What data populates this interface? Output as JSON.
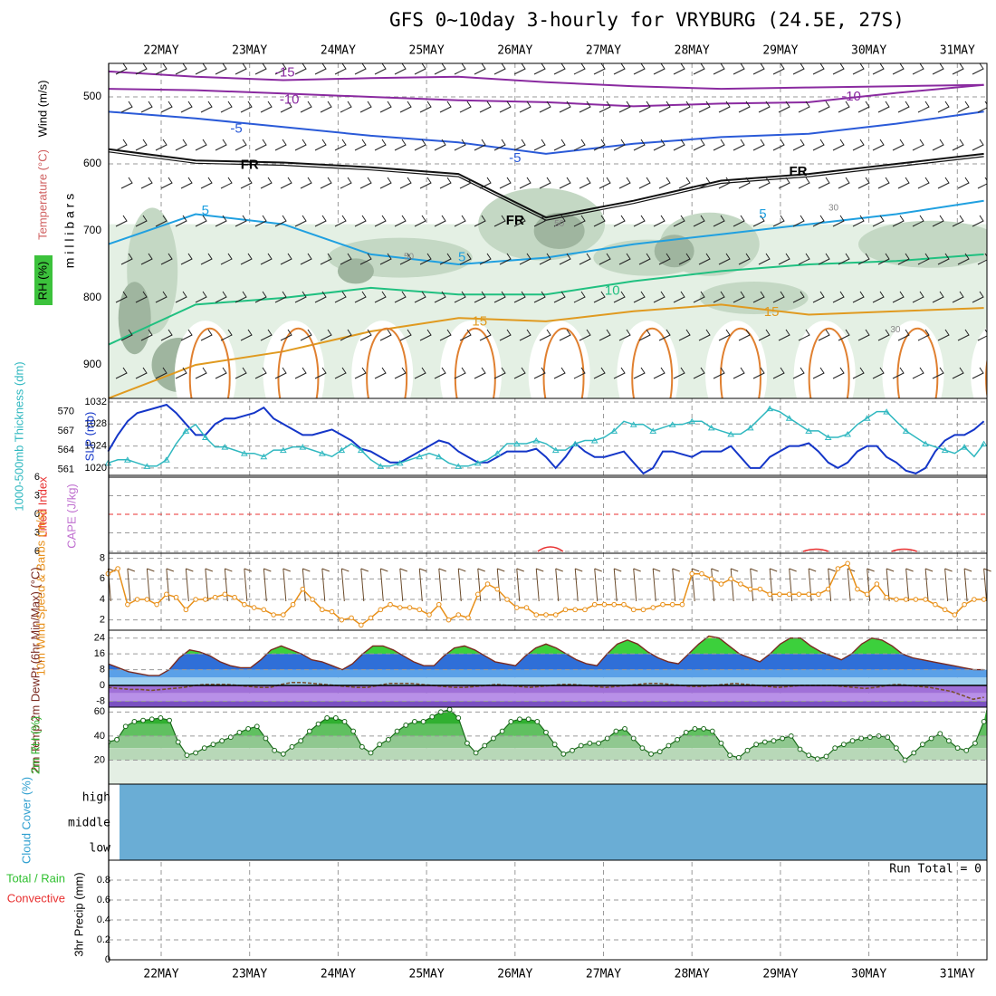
{
  "title": "GFS 0~10day 3-hourly for VRYBURG (24.5E, 27S)",
  "dates": [
    "22MAY",
    "23MAY",
    "24MAY",
    "25MAY",
    "26MAY",
    "27MAY",
    "28MAY",
    "29MAY",
    "30MAY",
    "31MAY"
  ],
  "colors": {
    "grid": "#9a9a9a",
    "slp": "#1436c8",
    "thickness": "#30b8c0",
    "wind10m": "#e8901a",
    "tmax_fill_hi": "#f0e860",
    "tmax_fill_mid": "#40c040",
    "rh_fill": "#58c058",
    "cloud": "#6aadd5",
    "lifted_zero": "#e83030"
  },
  "chart_data": [
    {
      "type": "line",
      "panel": "upper_air",
      "ylabel": "m i l l i b a r s",
      "side_labels": [
        "RH (%)",
        "Temperature (°C)",
        "Wind (m/s)"
      ],
      "y_ticks": [
        500,
        600,
        700,
        800,
        900
      ],
      "ylim": [
        450,
        950
      ],
      "isotherm_labels": [
        {
          "text": "-15",
          "day": 1.4,
          "p": 464
        },
        {
          "text": "-10",
          "day": 1.45,
          "p": 505
        },
        {
          "text": "-10",
          "day": 7.8,
          "p": 500
        },
        {
          "text": "-5",
          "day": 0.85,
          "p": 548
        },
        {
          "text": "-5",
          "day": 4.0,
          "p": 592
        },
        {
          "text": "FR",
          "day": 1.0,
          "p": 602
        },
        {
          "text": "FR",
          "day": 4.0,
          "p": 685
        },
        {
          "text": "FR",
          "day": 7.2,
          "p": 612
        },
        {
          "text": "5",
          "day": 0.5,
          "p": 670
        },
        {
          "text": "5",
          "day": 3.4,
          "p": 740
        },
        {
          "text": "5",
          "day": 6.8,
          "p": 676
        },
        {
          "text": "10",
          "day": 5.1,
          "p": 790
        },
        {
          "text": "15",
          "day": 3.6,
          "p": 836
        },
        {
          "text": "15",
          "day": 6.9,
          "p": 822
        },
        {
          "text": "30",
          "day": 7.6,
          "p": 666
        },
        {
          "text": "30",
          "day": 8.3,
          "p": 848
        },
        {
          "text": "50",
          "day": 2.8,
          "p": 739
        },
        {
          "text": "50",
          "day": 4.5,
          "p": 690
        }
      ]
    },
    {
      "type": "line",
      "panel": "slp_thickness",
      "ylabel_left": "1000-500mb Thickness (dm)",
      "ylabel_right": "SLP (mb)",
      "thickness_ticks": [
        561,
        564,
        567,
        570
      ],
      "slp_ticks": [
        1020,
        1024,
        1028,
        1032
      ],
      "series": [
        {
          "name": "SLP (mb)",
          "values": [
            1023,
            1026,
            1028.5,
            1030,
            1030.5,
            1031,
            1031.5,
            1030,
            1028,
            1026,
            1026,
            1028,
            1029,
            1029,
            1029.5,
            1030,
            1031,
            1029,
            1028,
            1027,
            1026,
            1026,
            1026.5,
            1027,
            1026,
            1025,
            1023.5,
            1023,
            1022,
            1021,
            1021,
            1022,
            1023,
            1024,
            1025,
            1024.5,
            1023,
            1022,
            1021,
            1021,
            1022,
            1023,
            1023,
            1023,
            1023.5,
            1022,
            1020,
            1022,
            1024.5,
            1023,
            1022,
            1022,
            1022.5,
            1023,
            1021,
            1019,
            1020,
            1023,
            1023,
            1022.5,
            1022,
            1023,
            1023,
            1023,
            1024,
            1022,
            1020,
            1020,
            1022,
            1023,
            1024,
            1024,
            1024.5,
            1023,
            1021,
            1020,
            1021,
            1023,
            1024,
            1024,
            1022,
            1021,
            1019.5,
            1019,
            1020,
            1023,
            1025,
            1026,
            1026,
            1027,
            1028.5
          ]
        },
        {
          "name": "Thickness (dm)",
          "values": [
            562,
            562.5,
            562.5,
            562,
            561.5,
            561.5,
            562.5,
            565,
            567,
            568,
            566,
            564.5,
            564.5,
            564,
            563.5,
            563.5,
            563,
            564,
            564,
            564.5,
            564.5,
            564,
            563.5,
            563,
            564,
            565,
            564,
            562.5,
            561.5,
            561.5,
            562,
            562.5,
            563,
            563.5,
            563,
            562,
            561.5,
            561.5,
            562,
            562.5,
            563.5,
            565,
            565,
            565,
            565.5,
            565,
            564,
            564,
            565,
            565.5,
            565.5,
            566,
            567,
            568.5,
            568,
            568,
            567,
            567.5,
            568,
            568,
            568.5,
            568.5,
            567.5,
            567,
            566.5,
            566.5,
            567.5,
            569,
            570.5,
            570,
            569,
            568,
            567,
            567,
            566,
            566,
            566.5,
            568,
            569,
            570,
            570,
            568.5,
            567,
            566,
            565,
            564.5,
            564,
            563.5,
            564.5,
            563,
            565
          ]
        }
      ]
    },
    {
      "type": "line",
      "panel": "stability",
      "ylabel_left": "Lifted Index",
      "ylabel_right": "CAPE (J/kg)",
      "y_ticks": [
        "6",
        "3",
        "0",
        "3",
        "6"
      ],
      "cape_blips": [
        {
          "day": 4.4,
          "value": 1
        },
        {
          "day": 7.4,
          "value": 0.5
        },
        {
          "day": 8.4,
          "value": 0.5
        }
      ]
    },
    {
      "type": "line",
      "panel": "wind10m",
      "ylabel": "10m Wind Speed & Barbs (m/s)",
      "y_ticks": [
        2,
        4,
        6,
        8
      ],
      "ylim": [
        1,
        8.5
      ],
      "series": [
        {
          "name": "10m Wind Speed",
          "values": [
            6.5,
            7,
            3.5,
            4,
            4,
            3.5,
            4.5,
            4.2,
            3,
            4,
            4,
            4.2,
            4.5,
            4.2,
            3.5,
            3.2,
            3,
            2.5,
            2.5,
            3.5,
            5,
            4,
            3,
            2.8,
            2,
            2.2,
            1.5,
            2.2,
            3,
            3.5,
            3.2,
            3.2,
            3,
            2.5,
            3.5,
            2,
            2.5,
            2.2,
            4.5,
            5.5,
            5,
            4,
            3.2,
            3.2,
            2.5,
            2.5,
            2.5,
            3,
            3,
            3,
            3.5,
            3.5,
            3.5,
            3.5,
            3,
            3,
            3.2,
            3.5,
            3.5,
            3.5,
            6.5,
            6.5,
            6,
            5.5,
            6,
            5.5,
            5,
            5,
            4.5,
            4.5,
            4.5,
            4.5,
            4.5,
            4.5,
            5,
            7,
            7.5,
            5,
            4.5,
            5.5,
            4.2,
            4,
            4,
            4,
            4,
            3.5,
            3,
            2.5,
            3.5,
            4,
            4
          ]
        }
      ]
    },
    {
      "type": "area",
      "panel": "temperature",
      "ylabel": "2m Temp 2m DewPt (6hr Min/Max) (°C)",
      "y_ticks": [
        -8,
        0,
        8,
        16,
        24
      ],
      "ylim": [
        -11,
        28
      ],
      "series": [
        {
          "name": "2m Temp",
          "values": [
            11,
            9,
            7,
            6,
            5,
            5,
            8,
            14,
            18,
            17,
            15,
            12,
            10,
            9,
            9,
            13,
            18,
            20,
            18,
            16,
            13,
            12,
            10,
            8,
            11,
            16,
            20,
            20,
            18,
            15,
            12,
            10,
            10,
            15,
            19,
            20,
            18,
            15,
            12,
            11,
            10,
            15,
            19,
            21,
            19,
            16,
            13,
            11,
            10,
            16,
            21,
            23,
            21,
            17,
            14,
            12,
            11,
            16,
            21,
            25,
            24,
            20,
            16,
            14,
            12,
            16,
            21,
            24,
            24,
            20,
            17,
            15,
            13,
            16,
            21,
            24,
            23,
            20,
            16,
            14,
            13,
            12,
            11,
            10,
            9,
            8,
            8
          ]
        },
        {
          "name": "2m DewPt",
          "values": [
            -1,
            -1.5,
            -2,
            -2,
            -2.5,
            -2,
            -1.5,
            -1,
            0,
            0.5,
            0.5,
            0.5,
            0,
            -0.5,
            -1,
            -1,
            0.5,
            1.5,
            1.5,
            1,
            0.5,
            0,
            -0.5,
            -1,
            -1,
            0,
            1,
            1,
            1,
            0.5,
            0,
            -0.5,
            -1,
            -1,
            -0.5,
            0,
            0.5,
            0,
            -0.5,
            -1,
            -0.5,
            0,
            0.5,
            0.5,
            0,
            -0.5,
            -1,
            -0.5,
            0,
            0.5,
            1,
            1,
            0.5,
            0,
            -0.5,
            -0.5,
            0,
            0.5,
            1,
            0.5,
            0,
            -0.5,
            -1,
            -0.5,
            0,
            0,
            0,
            0,
            -0.5,
            -1,
            -1.5,
            -1,
            0,
            0.5,
            0,
            -0.5,
            -1,
            -2,
            -3,
            -5,
            -7,
            -6
          ]
        }
      ]
    },
    {
      "type": "area",
      "panel": "rh2m",
      "ylabel": "2m RH (%)",
      "y_ticks": [
        20,
        40,
        60
      ],
      "ylim": [
        0,
        64
      ],
      "series": [
        {
          "name": "2m RH",
          "values": [
            35,
            37,
            48,
            52,
            53,
            54,
            55,
            53,
            35,
            24,
            26,
            30,
            33,
            36,
            39,
            43,
            46,
            48,
            38,
            28,
            25,
            31,
            36,
            44,
            50,
            55,
            55,
            52,
            44,
            31,
            26,
            33,
            37,
            44,
            49,
            52,
            52,
            56,
            60,
            62,
            55,
            34,
            26,
            32,
            38,
            44,
            52,
            54,
            54,
            52,
            43,
            33,
            25,
            28,
            32,
            34,
            34,
            38,
            44,
            46,
            38,
            30,
            25,
            27,
            32,
            37,
            43,
            46,
            46,
            44,
            34,
            24,
            22,
            28,
            33,
            35,
            36,
            38,
            40,
            29,
            24,
            21,
            23,
            30,
            33,
            36,
            38,
            39,
            40,
            39,
            30,
            20,
            26,
            33,
            38,
            42,
            36,
            30,
            28,
            34,
            52
          ]
        }
      ]
    },
    {
      "type": "area",
      "panel": "cloud",
      "ylabel": "Cloud Cover (%)",
      "levels": [
        "high",
        "middle",
        "low"
      ]
    },
    {
      "type": "bar",
      "panel": "precip",
      "ylabel": "3hr Precip (mm)",
      "side_labels": [
        "Total / Rain",
        "Convective"
      ],
      "y_ticks": [
        "0",
        "0.2",
        "0.4",
        "0.6",
        "0.8"
      ],
      "ylim": [
        0,
        1
      ],
      "run_total": "Run Total = 0"
    }
  ]
}
